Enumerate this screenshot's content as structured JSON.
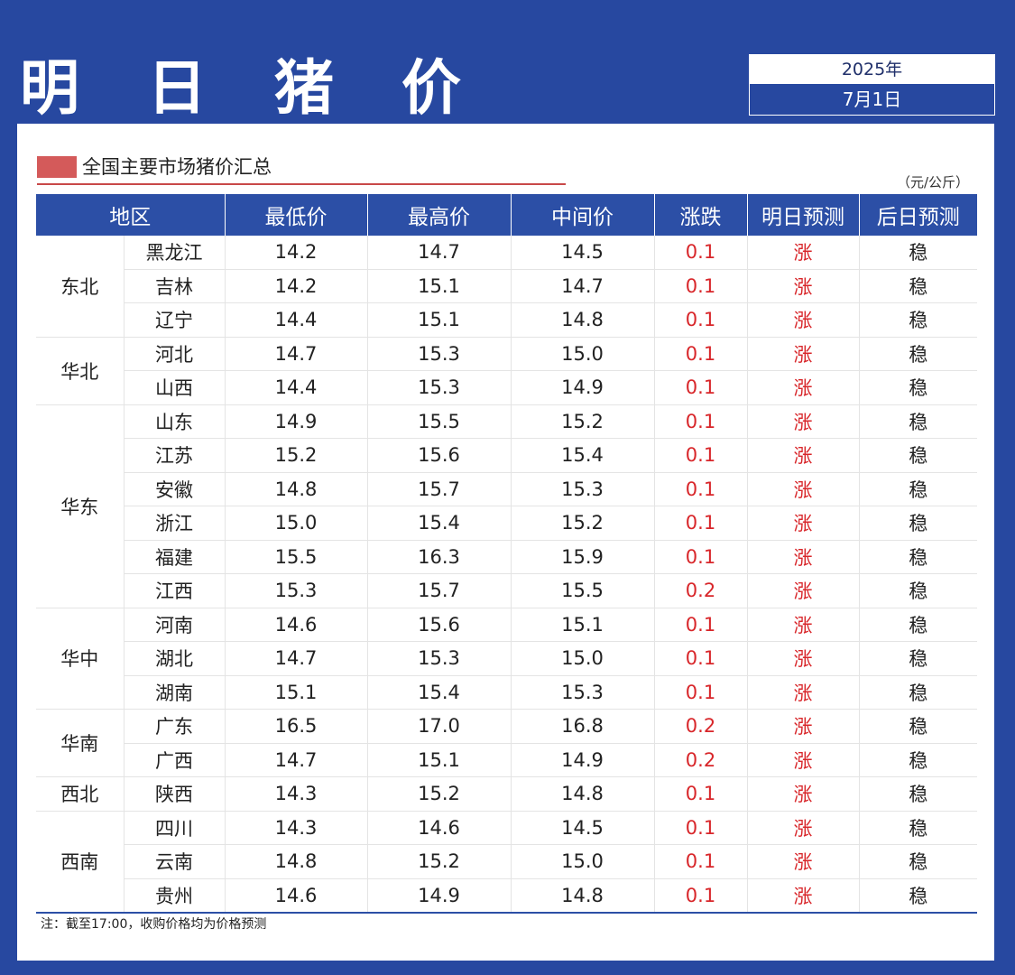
{
  "header": {
    "title": "明 日 猪 价"
  },
  "date": {
    "year": "2025年",
    "day": "7月1日"
  },
  "section": {
    "title": "全国主要市场猪价汇总",
    "unit": "（元/公斤）"
  },
  "table": {
    "columns": [
      "地区",
      "最低价",
      "最高价",
      "中间价",
      "涨跌",
      "明日预测",
      "后日预测"
    ],
    "groups": [
      {
        "region": "东北",
        "rows": [
          [
            "黑龙江",
            "14.2",
            "14.7",
            "14.5",
            "0.1",
            "涨",
            "稳"
          ],
          [
            "吉林",
            "14.2",
            "15.1",
            "14.7",
            "0.1",
            "涨",
            "稳"
          ],
          [
            "辽宁",
            "14.4",
            "15.1",
            "14.8",
            "0.1",
            "涨",
            "稳"
          ]
        ]
      },
      {
        "region": "华北",
        "rows": [
          [
            "河北",
            "14.7",
            "15.3",
            "15.0",
            "0.1",
            "涨",
            "稳"
          ],
          [
            "山西",
            "14.4",
            "15.3",
            "14.9",
            "0.1",
            "涨",
            "稳"
          ]
        ]
      },
      {
        "region": "华东",
        "rows": [
          [
            "山东",
            "14.9",
            "15.5",
            "15.2",
            "0.1",
            "涨",
            "稳"
          ],
          [
            "江苏",
            "15.2",
            "15.6",
            "15.4",
            "0.1",
            "涨",
            "稳"
          ],
          [
            "安徽",
            "14.8",
            "15.7",
            "15.3",
            "0.1",
            "涨",
            "稳"
          ],
          [
            "浙江",
            "15.0",
            "15.4",
            "15.2",
            "0.1",
            "涨",
            "稳"
          ],
          [
            "福建",
            "15.5",
            "16.3",
            "15.9",
            "0.1",
            "涨",
            "稳"
          ],
          [
            "江西",
            "15.3",
            "15.7",
            "15.5",
            "0.2",
            "涨",
            "稳"
          ]
        ]
      },
      {
        "region": "华中",
        "rows": [
          [
            "河南",
            "14.6",
            "15.6",
            "15.1",
            "0.1",
            "涨",
            "稳"
          ],
          [
            "湖北",
            "14.7",
            "15.3",
            "15.0",
            "0.1",
            "涨",
            "稳"
          ],
          [
            "湖南",
            "15.1",
            "15.4",
            "15.3",
            "0.1",
            "涨",
            "稳"
          ]
        ]
      },
      {
        "region": "华南",
        "rows": [
          [
            "广东",
            "16.5",
            "17.0",
            "16.8",
            "0.2",
            "涨",
            "稳"
          ],
          [
            "广西",
            "14.7",
            "15.1",
            "14.9",
            "0.2",
            "涨",
            "稳"
          ]
        ]
      },
      {
        "region": "西北",
        "rows": [
          [
            "陕西",
            "14.3",
            "15.2",
            "14.8",
            "0.1",
            "涨",
            "稳"
          ]
        ]
      },
      {
        "region": "西南",
        "rows": [
          [
            "四川",
            "14.3",
            "14.6",
            "14.5",
            "0.1",
            "涨",
            "稳"
          ],
          [
            "云南",
            "14.8",
            "15.2",
            "15.0",
            "0.1",
            "涨",
            "稳"
          ],
          [
            "贵州",
            "14.6",
            "14.9",
            "14.8",
            "0.1",
            "涨",
            "稳"
          ]
        ]
      }
    ]
  },
  "note": "注：截至17:00，收购价格均为价格预测",
  "colors": {
    "brand": "#2748a0",
    "header": "#2c4fa6",
    "rise": "#d8262a",
    "accent": "#d45a5a"
  }
}
